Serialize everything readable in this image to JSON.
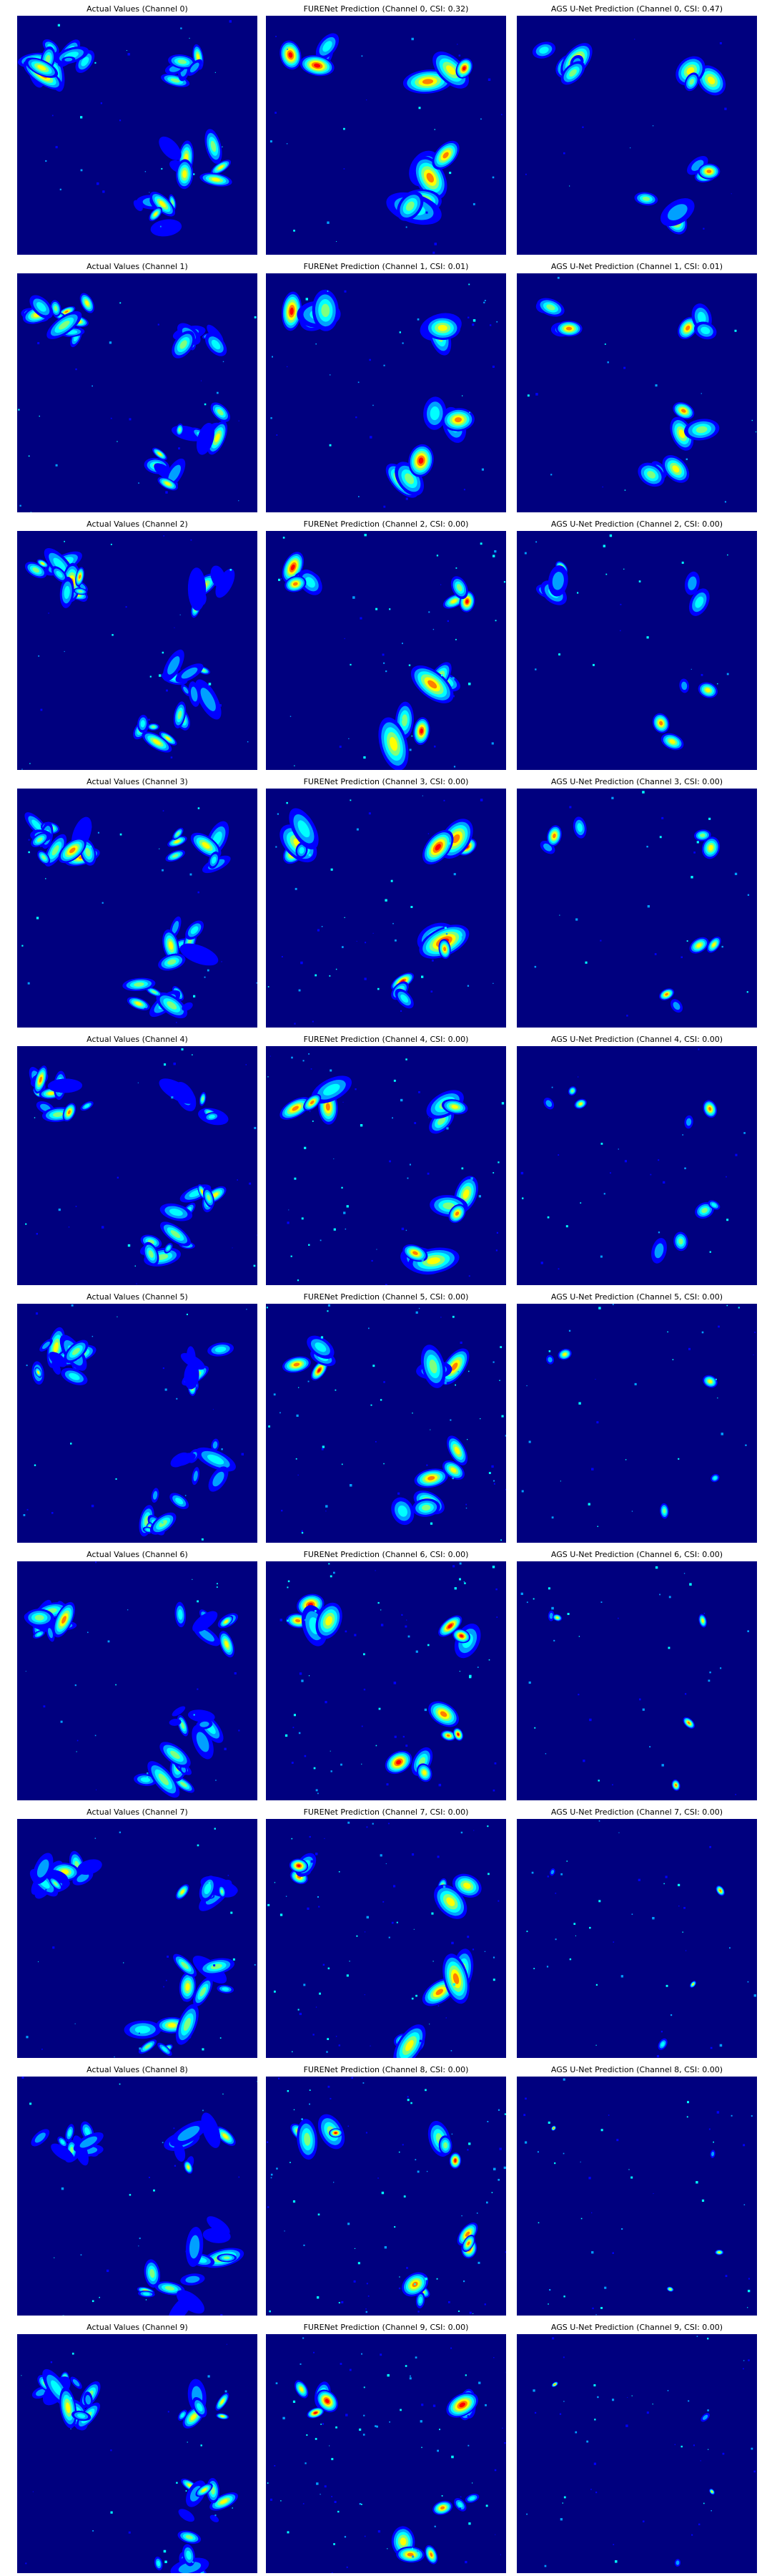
{
  "palette": {
    "background": "#00007f",
    "low": "#0000ff",
    "mid_low": "#00a0ff",
    "mid": "#00ffff",
    "mid_high": "#7fff7f",
    "high": "#ffff00",
    "very_high": "#ff7f00",
    "extreme": "#ff0000"
  },
  "rows": [
    {
      "channel": 0,
      "titles": [
        "Actual Values (Channel 0)",
        "FURENet Prediction (Channel 0, CSI: 0.32)",
        "AGS U-Net Prediction (Channel 0, CSI: 0.47)"
      ]
    },
    {
      "channel": 1,
      "titles": [
        "Actual Values (Channel 1)",
        "FURENet Prediction (Channel 1, CSI: 0.01)",
        "AGS U-Net Prediction (Channel 1, CSI: 0.01)"
      ]
    },
    {
      "channel": 2,
      "titles": [
        "Actual Values (Channel 2)",
        "FURENet Prediction (Channel 2, CSI: 0.00)",
        "AGS U-Net Prediction (Channel 2, CSI: 0.00)"
      ]
    },
    {
      "channel": 3,
      "titles": [
        "Actual Values (Channel 3)",
        "FURENet Prediction (Channel 3, CSI: 0.00)",
        "AGS U-Net Prediction (Channel 3, CSI: 0.00)"
      ]
    },
    {
      "channel": 4,
      "titles": [
        "Actual Values (Channel 4)",
        "FURENet Prediction (Channel 4, CSI: 0.00)",
        "AGS U-Net Prediction (Channel 4, CSI: 0.00)"
      ]
    },
    {
      "channel": 5,
      "titles": [
        "Actual Values (Channel 5)",
        "FURENet Prediction (Channel 5, CSI: 0.00)",
        "AGS U-Net Prediction (Channel 5, CSI: 0.00)"
      ]
    },
    {
      "channel": 6,
      "titles": [
        "Actual Values (Channel 6)",
        "FURENet Prediction (Channel 6, CSI: 0.00)",
        "AGS U-Net Prediction (Channel 6, CSI: 0.00)"
      ]
    },
    {
      "channel": 7,
      "titles": [
        "Actual Values (Channel 7)",
        "FURENet Prediction (Channel 7, CSI: 0.00)",
        "AGS U-Net Prediction (Channel 7, CSI: 0.00)"
      ]
    },
    {
      "channel": 8,
      "titles": [
        "Actual Values (Channel 8)",
        "FURENet Prediction (Channel 8, CSI: 0.00)",
        "AGS U-Net Prediction (Channel 8, CSI: 0.00)"
      ]
    },
    {
      "channel": 9,
      "titles": [
        "Actual Values (Channel 9)",
        "FURENet Prediction (Channel 9, CSI: 0.00)",
        "AGS U-Net Prediction (Channel 9, CSI: 0.00)"
      ]
    }
  ]
}
